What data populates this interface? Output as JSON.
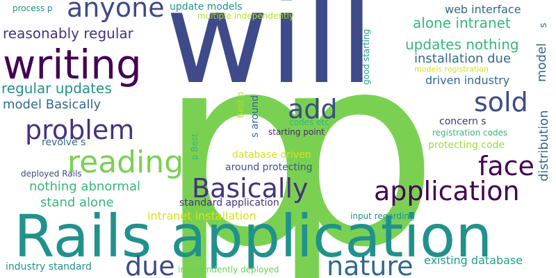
{
  "palette": {
    "navy": "#3e4a89",
    "green": "#7ad151",
    "teal": "#21918c",
    "purple": "#440154",
    "dark_purple": "#46327e",
    "blue": "#31688e",
    "light_green": "#b5de2b",
    "sea_green": "#35b779",
    "yellow": "#d8e219",
    "yellow_green": "#a0da39",
    "mid_green": "#6ece58",
    "aqua": "#1f9e89",
    "deep_purple": "#482878",
    "indigo": "#3b528b",
    "steel": "#2c728e"
  },
  "words": [
    {
      "text": "will",
      "color": "#3e4a89"
    },
    {
      "text": "p",
      "color": "#7ad151"
    },
    {
      "text": "p",
      "color": "#7ad151"
    },
    {
      "text": "Rails application",
      "color": "#21918c"
    },
    {
      "text": "writing",
      "color": "#440154"
    },
    {
      "text": "application",
      "color": "#440154"
    },
    {
      "text": "anyone",
      "color": "#3e4a89"
    },
    {
      "text": "reading",
      "color": "#7ad151"
    },
    {
      "text": "Basically",
      "color": "#46327e"
    },
    {
      "text": "problem",
      "color": "#46327e"
    },
    {
      "text": "nature",
      "color": "#31688e"
    },
    {
      "text": "face",
      "color": "#440154"
    },
    {
      "text": "sold",
      "color": "#3e4a89"
    },
    {
      "text": "add",
      "color": "#3e4a89"
    },
    {
      "text": "due",
      "color": "#3e4a89"
    },
    {
      "text": "reasonably regular",
      "color": "#46327e"
    },
    {
      "text": "regular updates",
      "color": "#21918c"
    },
    {
      "text": "model Basically",
      "color": "#31688e"
    },
    {
      "text": "updates nothing",
      "color": "#35b779"
    },
    {
      "text": "alone intranet",
      "color": "#35b779"
    },
    {
      "text": "installation due",
      "color": "#31688e"
    },
    {
      "text": "driven industry",
      "color": "#31688e"
    },
    {
      "text": "web interface",
      "color": "#31688e"
    },
    {
      "text": "update models",
      "color": "#21918c"
    },
    {
      "text": "multiple independently",
      "color": "#b5de2b"
    },
    {
      "text": "process p",
      "color": "#21918c"
    },
    {
      "text": "nothing abnormal",
      "color": "#35b779"
    },
    {
      "text": "stand alone",
      "color": "#35b779"
    },
    {
      "text": "intranet installation",
      "color": "#d8e219"
    },
    {
      "text": "database driven",
      "color": "#d8e219"
    },
    {
      "text": "around protecting",
      "color": "#3b528b"
    },
    {
      "text": "standard application",
      "color": "#46327e"
    },
    {
      "text": "revolve s",
      "color": "#31688e"
    },
    {
      "text": "deployed Rails",
      "color": "#3e4a89"
    },
    {
      "text": "codes etc",
      "color": "#35b779"
    },
    {
      "text": "starting point",
      "color": "#482878"
    },
    {
      "text": "concern s",
      "color": "#46327e"
    },
    {
      "text": "registration codes",
      "color": "#35b779"
    },
    {
      "text": "protecting code",
      "color": "#a0da39"
    },
    {
      "text": "models registration",
      "color": "#d8e219"
    },
    {
      "text": "input regarding",
      "color": "#21918c"
    },
    {
      "text": "existing database",
      "color": "#1f9e89"
    },
    {
      "text": "industry standard",
      "color": "#21918c"
    },
    {
      "text": "independently deployed",
      "color": "#6ece58"
    },
    {
      "text": "model",
      "color": "#31688e"
    },
    {
      "text": "distribution",
      "color": "#31688e"
    },
    {
      "text": "good starting",
      "color": "#1f9e89"
    },
    {
      "text": "s around",
      "color": "#31688e"
    },
    {
      "text": "Best p",
      "color": "#b5de2b"
    },
    {
      "text": "p Best",
      "color": "#35b779"
    },
    {
      "text": "s",
      "color": "#2c728e"
    }
  ]
}
